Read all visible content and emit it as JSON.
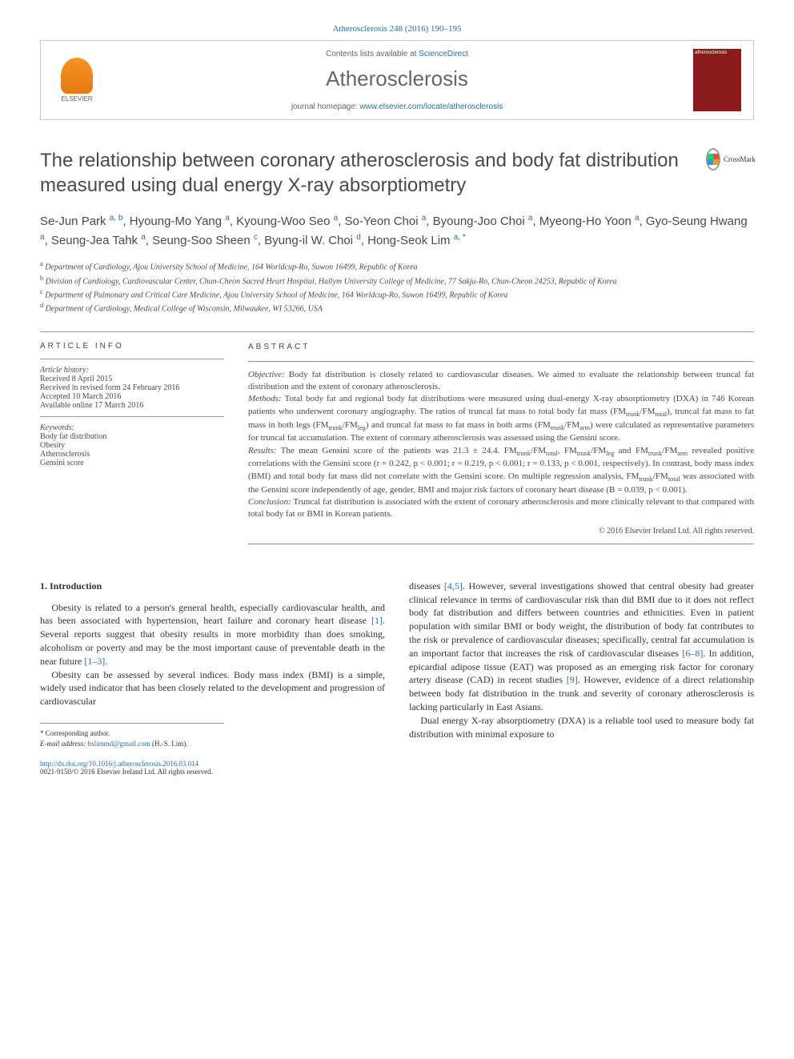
{
  "citation": "Atherosclerosis 248 (2016) 190–195",
  "header": {
    "publisher_name": "ELSEVIER",
    "contents_line_pre": "Contents lists available at ",
    "contents_link": "ScienceDirect",
    "journal_name": "Atherosclerosis",
    "homepage_pre": "journal homepage: ",
    "homepage_url": "www.elsevier.com/locate/atherosclerosis",
    "cover_label": "atherosclerosis"
  },
  "title": "The relationship between coronary atherosclerosis and body fat distribution measured using dual energy X-ray absorptiometry",
  "crossmark_label": "CrossMark",
  "authors_html": "Se-Jun Park <sup>a, b</sup>, Hyoung-Mo Yang <sup>a</sup>, Kyoung-Woo Seo <sup>a</sup>, So-Yeon Choi <sup>a</sup>, Byoung-Joo Choi <sup>a</sup>, Myeong-Ho Yoon <sup>a</sup>, Gyo-Seung Hwang <sup>a</sup>, Seung-Jea Tahk <sup>a</sup>, Seung-Soo Sheen <sup>c</sup>, Byung-il W. Choi <sup>d</sup>, Hong-Seok Lim <sup>a, *</sup>",
  "affiliations": {
    "a": "Department of Cardiology, Ajou University School of Medicine, 164 Worldcup-Ro, Suwon 16499, Republic of Korea",
    "b": "Division of Cardiology, Cardiovascular Center, Chun-Cheon Sacred Heart Hospital, Hallym University College of Medicine, 77 Sakju-Ro, Chun-Cheon 24253, Republic of Korea",
    "c": "Department of Pulmonary and Critical Care Medicine, Ajou University School of Medicine, 164 Worldcup-Ro, Suwon 16499, Republic of Korea",
    "d": "Department of Cardiology, Medical College of Wisconsin, Milwaukee, WI 53266, USA"
  },
  "article_info": {
    "heading": "ARTICLE INFO",
    "history_label": "Article history:",
    "received": "Received 8 April 2015",
    "revised": "Received in revised form 24 February 2016",
    "accepted": "Accepted 10 March 2016",
    "online": "Available online 17 March 2016",
    "keywords_label": "Keywords:",
    "keywords": [
      "Body fat distribution",
      "Obesity",
      "Atherosclerosis",
      "Gensini score"
    ]
  },
  "abstract": {
    "heading": "ABSTRACT",
    "objective_label": "Objective:",
    "objective": "Body fat distribution is closely related to cardiovascular diseases. We aimed to evaluate the relationship between truncal fat distribution and the extent of coronary atherosclerosis.",
    "methods_label": "Methods:",
    "methods": "Total body fat and regional body fat distributions were measured using dual-energy X-ray absorptiometry (DXA) in 746 Korean patients who underwent coronary angiography. The ratios of truncal fat mass to total body fat mass (FM<sub>trunk</sub>/FM<sub>total</sub>), truncal fat mass to fat mass in both legs (FM<sub>trunk</sub>/FM<sub>leg</sub>) and truncal fat mass to fat mass in both arms (FM<sub>trunk</sub>/FM<sub>arm</sub>) were calculated as representative parameters for truncal fat accumulation. The extent of coronary atherosclerosis was assessed using the Gensini score.",
    "results_label": "Results:",
    "results": "The mean Gensini score of the patients was 21.3 ± 24.4. FM<sub>trunk</sub>/FM<sub>total</sub>, FM<sub>trunk</sub>/FM<sub>leg</sub> and FM<sub>trunk</sub>/FM<sub>arm</sub> revealed positive correlations with the Gensini score (r = 0.242, p < 0.001; r = 0.219, p < 0.001; r = 0.133, p < 0.001, respectively). In contrast, body mass index (BMI) and total body fat mass did not correlate with the Gensini score. On multiple regression analysis, FM<sub>trunk</sub>/FM<sub>total</sub> was associated with the Gensini score independently of age, gender, BMI and major risk factors of coronary heart disease (B = 0.039, p < 0.001).",
    "conclusion_label": "Conclusion:",
    "conclusion": "Truncal fat distribution is associated with the extent of coronary atherosclerosis and more clinically relevant to that compared with total body fat or BMI in Korean patients.",
    "copyright": "© 2016 Elsevier Ireland Ltd. All rights reserved."
  },
  "body": {
    "section_heading": "1. Introduction",
    "left_p1": "Obesity is related to a person's general health, especially cardiovascular health, and has been associated with hypertension, heart failure and coronary heart disease <span class=\"ref\">[1]</span>. Several reports suggest that obesity results in more morbidity than does smoking, alcoholism or poverty and may be the most important cause of preventable death in the near future <span class=\"ref\">[1–3]</span>.",
    "left_p2": "Obesity can be assessed by several indices. Body mass index (BMI) is a simple, widely used indicator that has been closely related to the development and progression of cardiovascular",
    "right_p1": "diseases <span class=\"ref\">[4,5]</span>. However, several investigations showed that central obesity had greater clinical relevance in terms of cardiovascular risk than did BMI due to it does not reflect body fat distribution and differs between countries and ethnicities. Even in patient population with similar BMI or body weight, the distribution of body fat contributes to the risk or prevalence of cardiovascular diseases; specifically, central fat accumulation is an important factor that increases the risk of cardiovascular diseases <span class=\"ref\">[6–8]</span>. In addition, epicardial adipose tissue (EAT) was proposed as an emerging risk factor for coronary artery disease (CAD) in recent studies <span class=\"ref\">[9]</span>. However, evidence of a direct relationship between body fat distribution in the trunk and severity of coronary atherosclerosis is lacking particularly in East Asians.",
    "right_p2": "Dual energy X-ray absorptiometry (DXA) is a reliable tool used to measure body fat distribution with minimal exposure to"
  },
  "footnote": {
    "corresponding": "* Corresponding author.",
    "email_label": "E-mail address:",
    "email": "hslimmd@gmail.com",
    "email_suffix": "(H.-S. Lim)."
  },
  "doi": {
    "url": "http://dx.doi.org/10.1016/j.atherosclerosis.2016.03.014",
    "issn_line": "0021-9150/© 2016 Elsevier Ireland Ltd. All rights reserved."
  },
  "colors": {
    "link": "#2e6da4",
    "text": "#4a4a4a",
    "elsevier_orange": "#f7941e",
    "cover_bg": "#8b1a1a"
  }
}
